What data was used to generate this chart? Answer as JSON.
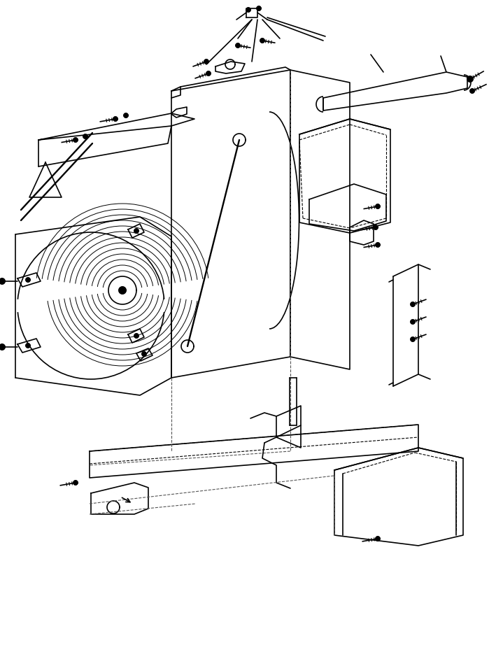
{
  "bg_color": "#ffffff",
  "line_color": "#000000",
  "line_width": 1.2,
  "fig_width": 7.09,
  "fig_height": 9.32,
  "dpi": 100
}
